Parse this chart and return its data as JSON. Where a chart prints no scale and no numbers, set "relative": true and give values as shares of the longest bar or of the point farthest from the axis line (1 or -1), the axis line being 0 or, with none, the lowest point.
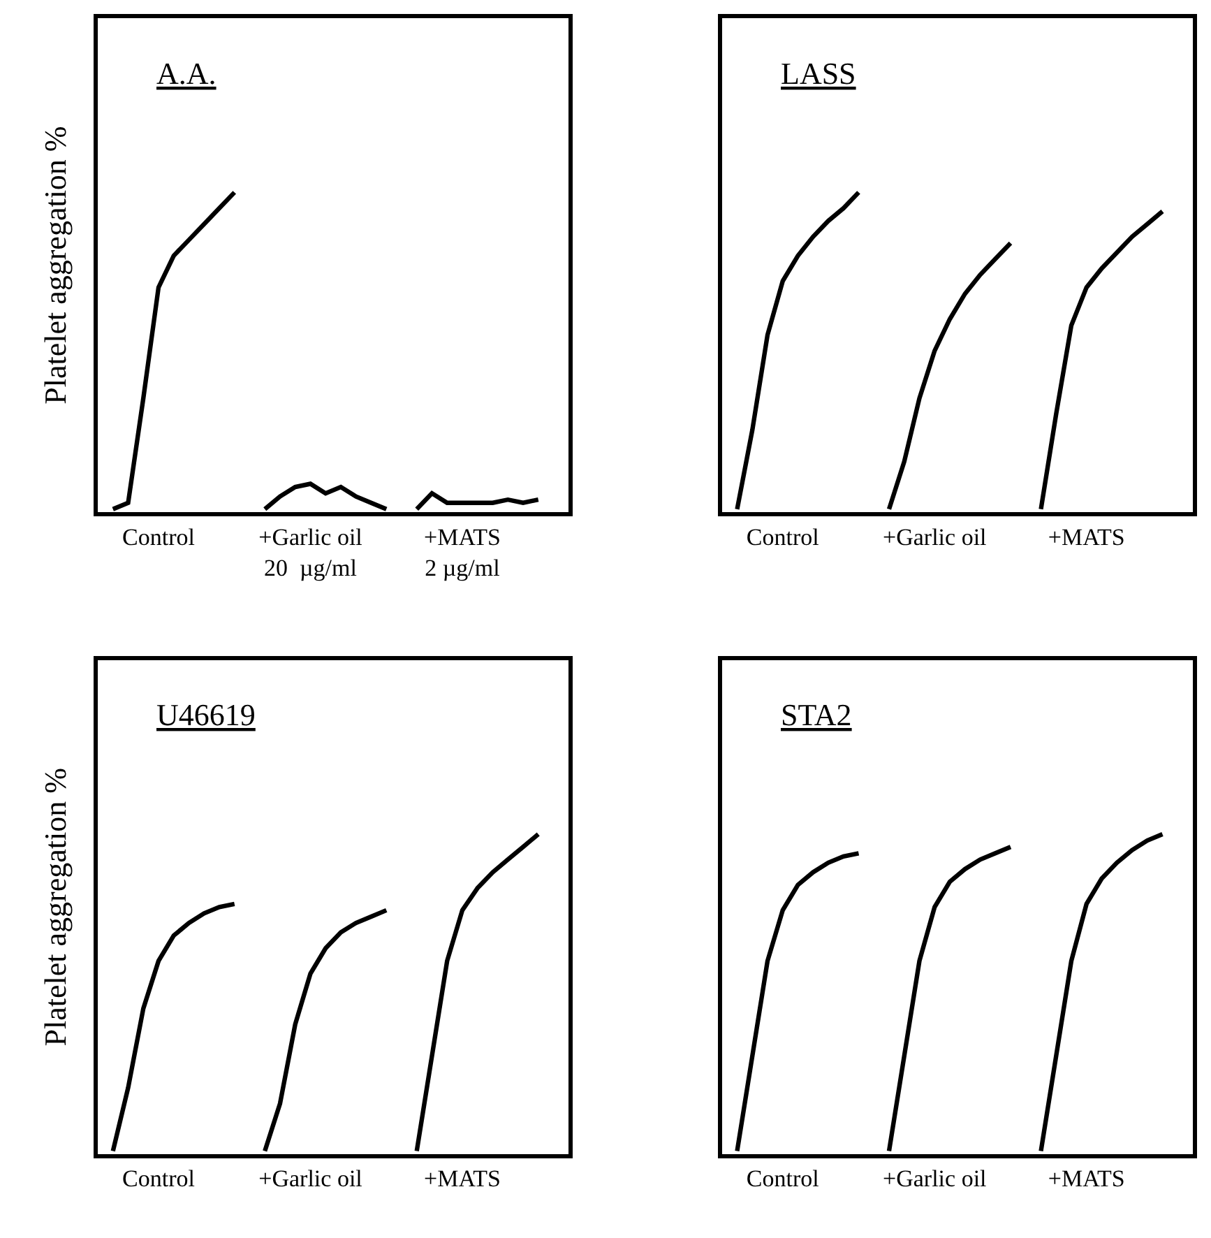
{
  "chart_data": [
    {
      "type": "line",
      "title": "A.A.",
      "ylabel": "Platelet aggregation %",
      "relative": true,
      "tick_labels": "x",
      "categories": [
        null,
        null,
        null,
        "Control",
        null,
        null,
        null,
        null,
        null,
        null,
        null,
        null,
        null,
        "+Garlic oil\n20  µg/ml",
        null,
        null,
        null,
        null,
        null,
        null,
        null,
        null,
        null,
        "+MATS\n2 µg/ml",
        null,
        null,
        null,
        null,
        null,
        null
      ],
      "series": [
        {
          "color": "#000000",
          "values": [
            0,
            0.02,
            0.35,
            0.7,
            0.8,
            0.85,
            0.9,
            0.95,
            1.0,
            null,
            null,
            null,
            null,
            null,
            null,
            null,
            null,
            null,
            null,
            null,
            null,
            null,
            null,
            null,
            null,
            null,
            null,
            null,
            null,
            null
          ]
        },
        {
          "color": "#000000",
          "values": [
            null,
            null,
            null,
            null,
            null,
            null,
            null,
            null,
            null,
            null,
            0,
            0.04,
            0.07,
            0.08,
            0.05,
            0.07,
            0.04,
            0.02,
            0,
            null,
            null,
            null,
            null,
            null,
            null,
            null,
            null,
            null,
            null,
            null
          ]
        },
        {
          "color": "#000000",
          "values": [
            null,
            null,
            null,
            null,
            null,
            null,
            null,
            null,
            null,
            null,
            null,
            null,
            null,
            null,
            null,
            null,
            null,
            null,
            null,
            null,
            0,
            0.05,
            0.02,
            0.02,
            0.02,
            0.02,
            0.03,
            0.02,
            0.03,
            null
          ]
        }
      ]
    },
    {
      "type": "line",
      "title": "LASS",
      "relative": true,
      "tick_labels": "x",
      "categories": [
        null,
        null,
        null,
        "Control",
        null,
        null,
        null,
        null,
        null,
        null,
        null,
        null,
        null,
        "+Garlic oil",
        null,
        null,
        null,
        null,
        null,
        null,
        null,
        null,
        null,
        "+MATS",
        null,
        null,
        null,
        null,
        null,
        null
      ],
      "series": [
        {
          "color": "#000000",
          "values": [
            0,
            0.25,
            0.55,
            0.72,
            0.8,
            0.86,
            0.91,
            0.95,
            1.0,
            null,
            null,
            null,
            null,
            null,
            null,
            null,
            null,
            null,
            null,
            null,
            null,
            null,
            null,
            null,
            null,
            null,
            null,
            null,
            null,
            null
          ]
        },
        {
          "color": "#000000",
          "values": [
            null,
            null,
            null,
            null,
            null,
            null,
            null,
            null,
            null,
            null,
            0,
            0.15,
            0.35,
            0.5,
            0.6,
            0.68,
            0.74,
            0.79,
            0.84,
            null,
            null,
            null,
            null,
            null,
            null,
            null,
            null,
            null,
            null,
            null
          ]
        },
        {
          "color": "#000000",
          "values": [
            null,
            null,
            null,
            null,
            null,
            null,
            null,
            null,
            null,
            null,
            null,
            null,
            null,
            null,
            null,
            null,
            null,
            null,
            null,
            null,
            0,
            0.3,
            0.58,
            0.7,
            0.76,
            0.81,
            0.86,
            0.9,
            0.94,
            null
          ]
        }
      ]
    },
    {
      "type": "line",
      "title": "U46619",
      "ylabel": "Platelet aggregation %",
      "relative": true,
      "tick_labels": "x",
      "categories": [
        null,
        null,
        null,
        "Control",
        null,
        null,
        null,
        null,
        null,
        null,
        null,
        null,
        null,
        "+Garlic oil",
        null,
        null,
        null,
        null,
        null,
        null,
        null,
        null,
        null,
        "+MATS",
        null,
        null,
        null,
        null,
        null,
        null
      ],
      "series": [
        {
          "color": "#000000",
          "values": [
            0,
            0.2,
            0.45,
            0.6,
            0.68,
            0.72,
            0.75,
            0.77,
            0.78,
            null,
            null,
            null,
            null,
            null,
            null,
            null,
            null,
            null,
            null,
            null,
            null,
            null,
            null,
            null,
            null,
            null,
            null,
            null,
            null,
            null
          ]
        },
        {
          "color": "#000000",
          "values": [
            null,
            null,
            null,
            null,
            null,
            null,
            null,
            null,
            null,
            null,
            0,
            0.15,
            0.4,
            0.56,
            0.64,
            0.69,
            0.72,
            0.74,
            0.76,
            null,
            null,
            null,
            null,
            null,
            null,
            null,
            null,
            null,
            null,
            null
          ]
        },
        {
          "color": "#000000",
          "values": [
            null,
            null,
            null,
            null,
            null,
            null,
            null,
            null,
            null,
            null,
            null,
            null,
            null,
            null,
            null,
            null,
            null,
            null,
            null,
            null,
            0,
            0.3,
            0.6,
            0.76,
            0.83,
            0.88,
            0.92,
            0.96,
            1.0,
            null
          ]
        }
      ]
    },
    {
      "type": "line",
      "title": "STA2",
      "relative": true,
      "tick_labels": "x",
      "categories": [
        null,
        null,
        null,
        "Control",
        null,
        null,
        null,
        null,
        null,
        null,
        null,
        null,
        null,
        "+Garlic oil",
        null,
        null,
        null,
        null,
        null,
        null,
        null,
        null,
        null,
        "+MATS",
        null,
        null,
        null,
        null,
        null,
        null
      ],
      "series": [
        {
          "color": "#000000",
          "values": [
            0,
            0.3,
            0.6,
            0.76,
            0.84,
            0.88,
            0.91,
            0.93,
            0.94,
            null,
            null,
            null,
            null,
            null,
            null,
            null,
            null,
            null,
            null,
            null,
            null,
            null,
            null,
            null,
            null,
            null,
            null,
            null,
            null,
            null
          ]
        },
        {
          "color": "#000000",
          "values": [
            null,
            null,
            null,
            null,
            null,
            null,
            null,
            null,
            null,
            null,
            0,
            0.3,
            0.6,
            0.77,
            0.85,
            0.89,
            0.92,
            0.94,
            0.96,
            null,
            null,
            null,
            null,
            null,
            null,
            null,
            null,
            null,
            null,
            null
          ]
        },
        {
          "color": "#000000",
          "values": [
            null,
            null,
            null,
            null,
            null,
            null,
            null,
            null,
            null,
            null,
            null,
            null,
            null,
            null,
            null,
            null,
            null,
            null,
            null,
            null,
            0,
            0.3,
            0.6,
            0.78,
            0.86,
            0.91,
            0.95,
            0.98,
            1.0,
            null
          ]
        }
      ]
    }
  ]
}
